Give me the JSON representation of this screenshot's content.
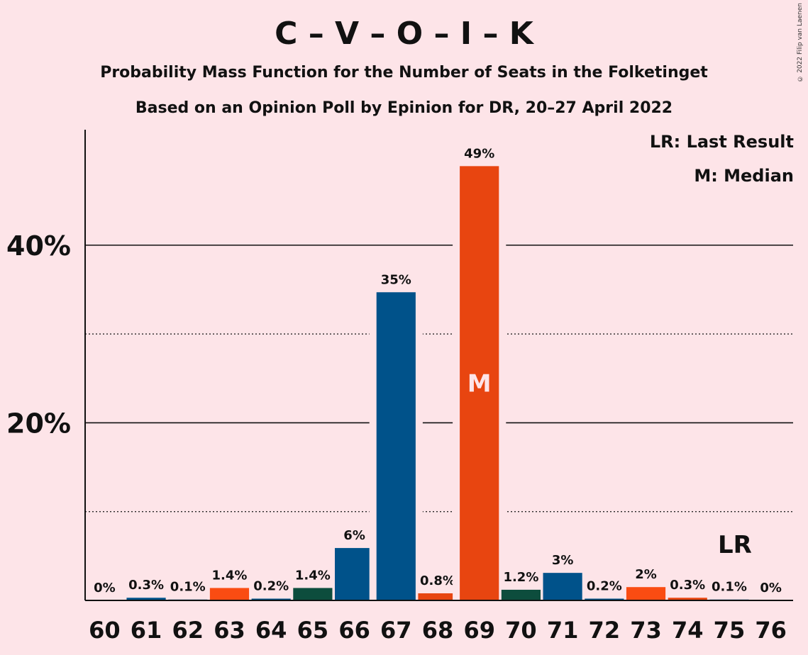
{
  "header": {
    "title": "C – V – O – I – K",
    "subtitle": "Probability Mass Function for the Number of Seats in the Folketinget",
    "subtitle2": "Based on an Opinion Poll by Epinion for DR, 20–27 April 2022",
    "copyright": "© 2022 Filip van Laenen"
  },
  "legend": {
    "last_result": "LR: Last Result",
    "median": "M: Median"
  },
  "colors": {
    "background": "#fde4e8",
    "blue": "#00528a",
    "orange": "#e84510",
    "red_orange": "#fa4c12",
    "green": "#0d4d3d"
  },
  "chart_data": {
    "type": "bar",
    "categories": [
      "60",
      "61",
      "62",
      "63",
      "64",
      "65",
      "66",
      "67",
      "68",
      "69",
      "70",
      "71",
      "72",
      "73",
      "74",
      "75",
      "76"
    ],
    "values": [
      0,
      0.3,
      0.1,
      1.4,
      0.2,
      1.4,
      6,
      35,
      0.8,
      49,
      1.2,
      3,
      0.2,
      2,
      0.3,
      0.1,
      0
    ],
    "plotted_values": [
      0,
      0.3,
      0.1,
      1.4,
      0.2,
      1.4,
      5.9,
      34.7,
      0.8,
      48.9,
      1.2,
      3.1,
      0.2,
      1.5,
      0.3,
      0.1,
      0
    ],
    "value_labels": [
      "0%",
      "0.3%",
      "0.1%",
      "1.4%",
      "0.2%",
      "1.4%",
      "6%",
      "35%",
      "0.8%",
      "49%",
      "1.2%",
      "3%",
      "0.2%",
      "2%",
      "0.3%",
      "0.1%",
      "0%"
    ],
    "bar_colors": [
      "#00528a",
      "#00528a",
      "#00528a",
      "#fa4c12",
      "#00528a",
      "#0d4d3d",
      "#00528a",
      "#00528a",
      "#e84510",
      "#e84510",
      "#0d4d3d",
      "#00528a",
      "#00528a",
      "#fa4c12",
      "#e84510",
      "#00528a",
      "#00528a"
    ],
    "ylim": [
      0,
      53
    ],
    "yticks": [
      {
        "value": 20,
        "label": "20%"
      },
      {
        "value": 40,
        "label": "40%"
      }
    ],
    "minor_gridlines": [
      10,
      30
    ],
    "median_category": "69",
    "median_label": "M",
    "last_result_category": "75",
    "last_result_label": "LR"
  }
}
